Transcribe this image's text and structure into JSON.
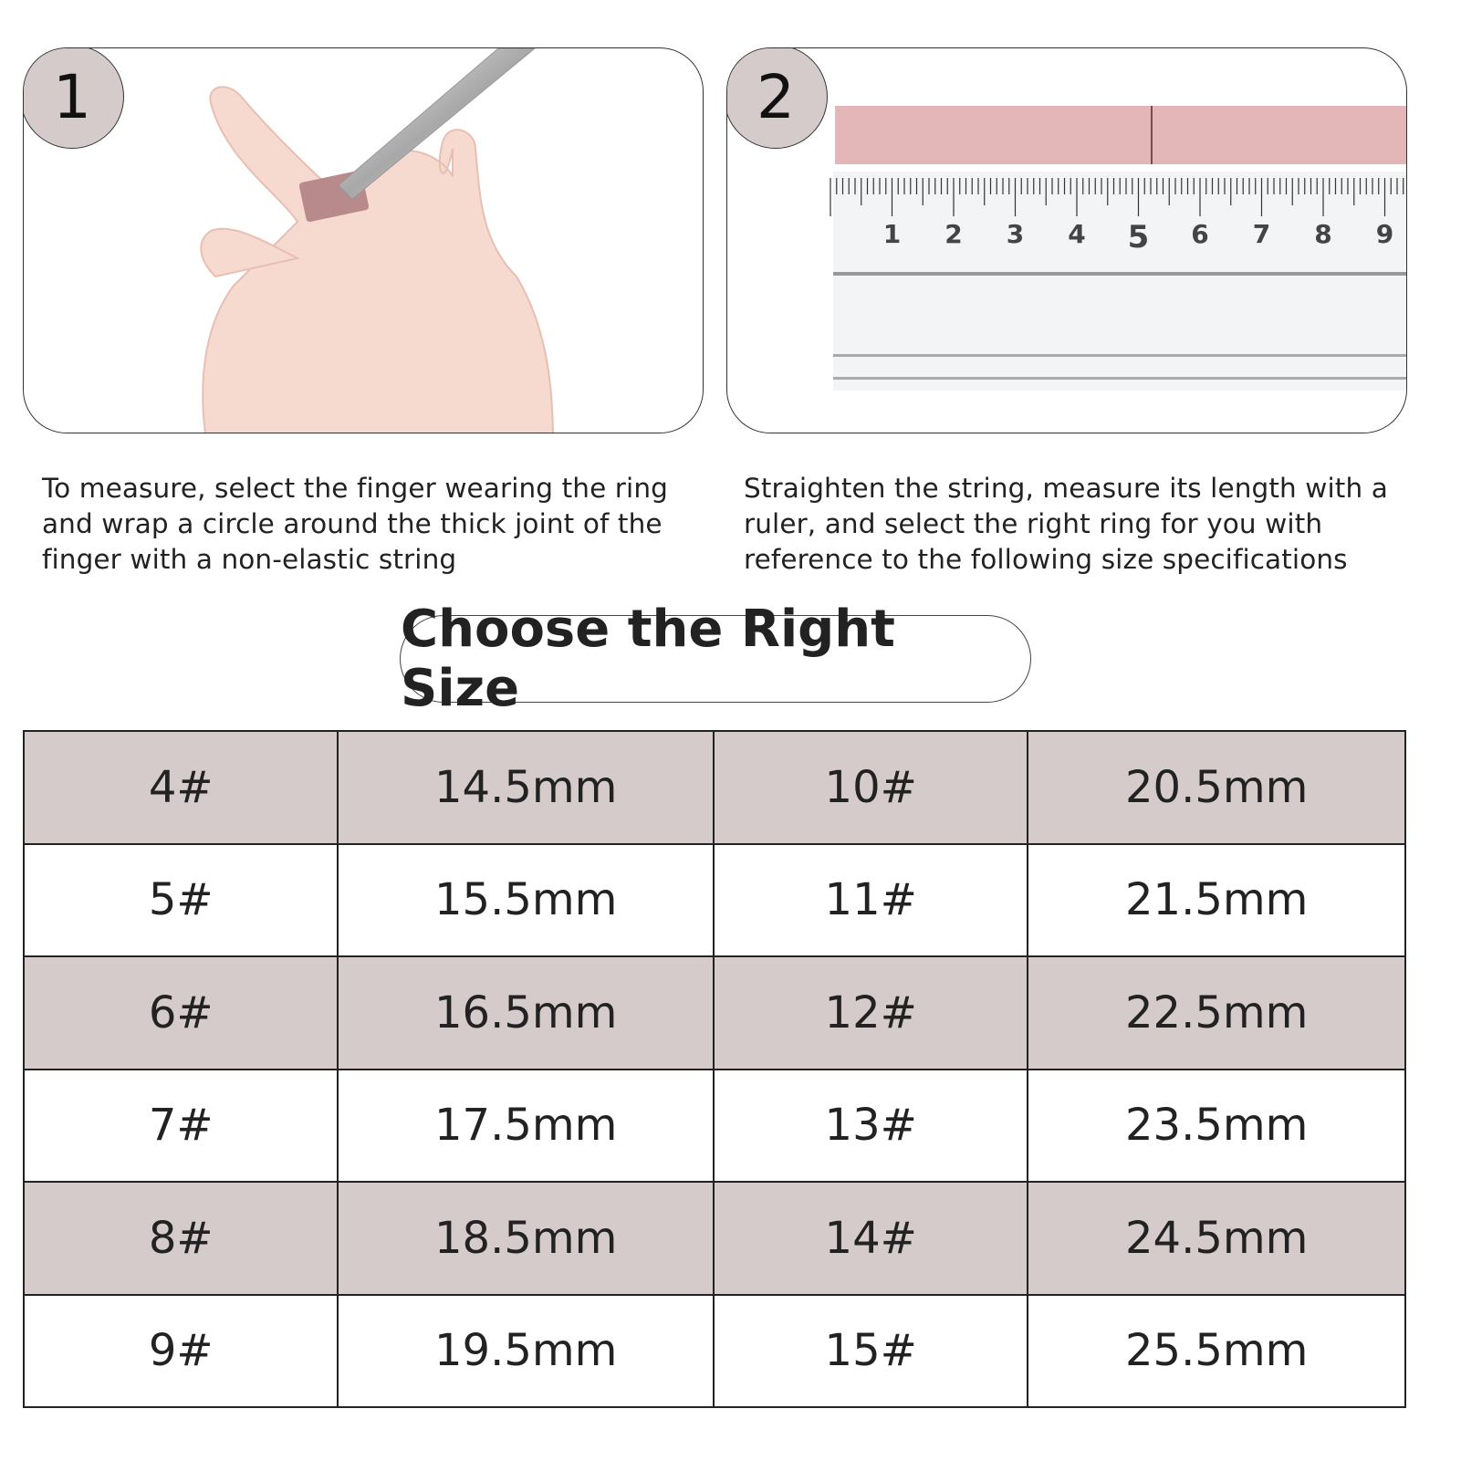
{
  "steps": [
    {
      "number": "1",
      "text": "To measure, select the finger wearing the ring and wrap a circle around the thick joint of the finger with a non-elastic string"
    },
    {
      "number": "2",
      "text": "Straighten the string, measure its length with a ruler, and select the right ring for you with reference to the following size specifications"
    }
  ],
  "ruler": {
    "labels": [
      "1",
      "2",
      "3",
      "4",
      "5",
      "6",
      "7",
      "8",
      "9"
    ]
  },
  "title": "Choose the Right Size",
  "colors": {
    "shade": "#d5cbcb",
    "string": "#e3b6b8",
    "ring": "#b98a8c"
  },
  "size_table": {
    "rows": [
      [
        "4#",
        "14.5mm",
        "10#",
        "20.5mm"
      ],
      [
        "5#",
        "15.5mm",
        "11#",
        "21.5mm"
      ],
      [
        "6#",
        "16.5mm",
        "12#",
        "22.5mm"
      ],
      [
        "7#",
        "17.5mm",
        "13#",
        "23.5mm"
      ],
      [
        "8#",
        "18.5mm",
        "14#",
        "24.5mm"
      ],
      [
        "9#",
        "19.5mm",
        "15#",
        "25.5mm"
      ]
    ]
  }
}
